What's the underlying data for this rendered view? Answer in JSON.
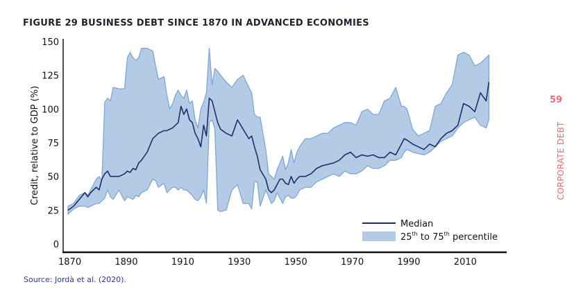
{
  "figure": {
    "title": "FIGURE 29 BUSINESS DEBT SINCE 1870 IN ADVANCED ECONOMIES",
    "source": "Source: Jordà et al. (2020).",
    "page_number": "59",
    "section_label": "CORPORATE DEBT"
  },
  "colors": {
    "median": "#1f2d6b",
    "band_fill": "#b4cbe6",
    "band_stroke": "#7fa6d6",
    "accent": "#f06b78"
  },
  "chart_data": {
    "type": "area",
    "title": "FIGURE 29 BUSINESS DEBT SINCE 1870 IN ADVANCED ECONOMIES",
    "xlabel": "",
    "ylabel": "Credit, relative to GDP (%)",
    "xlim": [
      1870,
      2019
    ],
    "ylim": [
      0,
      150
    ],
    "x_ticks": [
      1870,
      1890,
      1910,
      1930,
      1950,
      1970,
      1990,
      2010
    ],
    "y_ticks": [
      0,
      25,
      50,
      75,
      100,
      125,
      150
    ],
    "grid": false,
    "legend": {
      "position": "bottom-right",
      "entries": [
        {
          "label": "Median",
          "type": "line"
        },
        {
          "label_parts": [
            "25",
            "th",
            " to 75",
            "th",
            " percentile"
          ],
          "label": "25th to 75th percentile",
          "type": "band"
        }
      ]
    },
    "x": [
      1870,
      1872,
      1874,
      1876,
      1877,
      1878,
      1880,
      1881,
      1882,
      1883,
      1884,
      1885,
      1886,
      1888,
      1890,
      1891,
      1892,
      1893,
      1894,
      1895,
      1896,
      1898,
      1900,
      1901,
      1902,
      1904,
      1905,
      1906,
      1907,
      1908,
      1909,
      1910,
      1911,
      1912,
      1913,
      1914,
      1915,
      1916,
      1917,
      1918,
      1919,
      1920,
      1921,
      1922,
      1923,
      1924,
      1926,
      1928,
      1930,
      1932,
      1934,
      1935,
      1936,
      1937,
      1938,
      1940,
      1941,
      1942,
      1943,
      1944,
      1945,
      1946,
      1947,
      1948,
      1949,
      1950,
      1951,
      1952,
      1954,
      1956,
      1958,
      1960,
      1962,
      1964,
      1966,
      1968,
      1970,
      1972,
      1974,
      1976,
      1978,
      1980,
      1982,
      1984,
      1986,
      1988,
      1989,
      1990,
      1992,
      1994,
      1996,
      1998,
      2000,
      2002,
      2004,
      2006,
      2008,
      2010,
      2012,
      2014,
      2016,
      2018,
      2019
    ],
    "series": [
      {
        "name": "Median",
        "values": [
          25,
          28,
          33,
          38,
          35,
          38,
          42,
          40,
          48,
          52,
          54,
          50,
          50,
          50,
          52,
          54,
          53,
          56,
          55,
          60,
          62,
          68,
          78,
          80,
          82,
          84,
          84,
          85,
          86,
          88,
          90,
          102,
          96,
          100,
          92,
          90,
          82,
          78,
          72,
          88,
          80,
          108,
          106,
          98,
          90,
          85,
          82,
          80,
          92,
          85,
          78,
          80,
          72,
          65,
          55,
          48,
          40,
          38,
          40,
          44,
          48,
          48,
          45,
          44,
          50,
          45,
          48,
          50,
          50,
          52,
          56,
          58,
          59,
          60,
          62,
          66,
          68,
          64,
          66,
          65,
          66,
          64,
          64,
          68,
          66,
          74,
          78,
          77,
          74,
          72,
          70,
          74,
          72,
          78,
          82,
          84,
          88,
          104,
          102,
          98,
          112,
          106,
          120
        ]
      },
      {
        "name": "25th percentile",
        "values": [
          22,
          26,
          28,
          28,
          27,
          28,
          30,
          30,
          32,
          34,
          40,
          35,
          33,
          40,
          32,
          35,
          34,
          33,
          36,
          35,
          38,
          40,
          48,
          47,
          42,
          45,
          38,
          40,
          42,
          42,
          40,
          42,
          40,
          40,
          38,
          36,
          33,
          32,
          35,
          40,
          30,
          90,
          92,
          85,
          25,
          24,
          25,
          40,
          44,
          30,
          30,
          26,
          46,
          46,
          28,
          40,
          35,
          30,
          32,
          38,
          34,
          30,
          35,
          36,
          34,
          34,
          36,
          40,
          42,
          42,
          46,
          48,
          50,
          52,
          50,
          54,
          52,
          52,
          54,
          58,
          56,
          56,
          58,
          62,
          62,
          64,
          68,
          70,
          68,
          67,
          66,
          68,
          72,
          76,
          78,
          80,
          86,
          90,
          92,
          94,
          88,
          86,
          92
        ]
      },
      {
        "name": "75th percentile",
        "values": [
          28,
          30,
          36,
          38,
          36,
          40,
          48,
          50,
          47,
          105,
          108,
          106,
          116,
          115,
          115,
          138,
          142,
          138,
          136,
          138,
          145,
          145,
          143,
          132,
          122,
          124,
          110,
          100,
          104,
          110,
          114,
          110,
          108,
          114,
          104,
          106,
          92,
          86,
          100,
          105,
          112,
          145,
          118,
          130,
          128,
          125,
          120,
          116,
          122,
          125,
          116,
          112,
          96,
          94,
          94,
          70,
          52,
          50,
          48,
          55,
          60,
          65,
          55,
          60,
          70,
          60,
          68,
          72,
          78,
          78,
          80,
          82,
          82,
          86,
          88,
          90,
          90,
          88,
          98,
          100,
          96,
          96,
          106,
          108,
          116,
          102,
          102,
          100,
          85,
          80,
          82,
          84,
          102,
          104,
          112,
          118,
          140,
          142,
          140,
          132,
          134,
          138,
          140
        ]
      }
    ]
  }
}
